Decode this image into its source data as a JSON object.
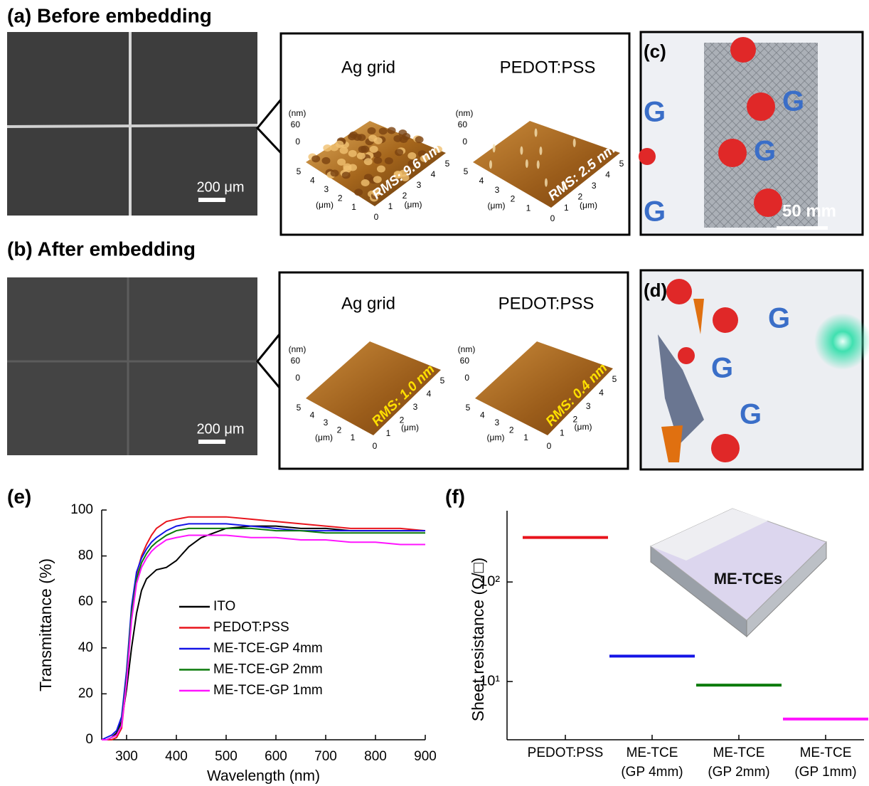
{
  "panels": {
    "a": {
      "label": "(a) Before embedding",
      "scale_bar": "200 μm",
      "afm": [
        {
          "title": "Ag grid",
          "rms": "RMS: 9.6 nm"
        },
        {
          "title": "PEDOT:PSS",
          "rms": "RMS: 2.5 nm"
        }
      ]
    },
    "b": {
      "label": "(b) After embedding",
      "scale_bar": "200 μm",
      "afm": [
        {
          "title": "Ag grid",
          "rms": "RMS: 1.0 nm"
        },
        {
          "title": "PEDOT:PSS",
          "rms": "RMS: 0.4 nm"
        }
      ]
    },
    "c": {
      "label": "(c)",
      "scale_bar": "50 mm"
    },
    "d": {
      "label": "(d)"
    },
    "afm_axes": {
      "z_unit": "(nm)",
      "z_ticks": [
        "60",
        "0"
      ],
      "xy_unit": "(μm)",
      "xy_ticks": [
        "0",
        "1",
        "2",
        "3",
        "4",
        "5"
      ]
    },
    "e": {
      "label": "(e)"
    },
    "f": {
      "label": "(f)",
      "inset": "ME-TCEs"
    }
  },
  "chart_data": [
    {
      "type": "line",
      "xlabel": "Wavelength (nm)",
      "ylabel": "Transmittance (%)",
      "x": [
        250,
        260,
        270,
        280,
        290,
        300,
        310,
        320,
        330,
        340,
        350,
        360,
        380,
        400,
        425,
        450,
        500,
        550,
        600,
        650,
        700,
        750,
        800,
        850,
        900
      ],
      "xlim": [
        250,
        900
      ],
      "xticks": [
        300,
        400,
        500,
        600,
        700,
        800,
        900
      ],
      "ylim": [
        0,
        100
      ],
      "yticks": [
        0,
        20,
        40,
        60,
        80,
        100
      ],
      "legend": "center",
      "series": [
        {
          "name": "ITO",
          "color": "#000000",
          "values": [
            0,
            0,
            1,
            3,
            8,
            22,
            40,
            55,
            65,
            70,
            72,
            74,
            75,
            78,
            84,
            88,
            92,
            93,
            93,
            92,
            92,
            91,
            91,
            91,
            91
          ]
        },
        {
          "name": "PEDOT:PSS",
          "color": "#e8141c",
          "values": [
            0,
            0,
            0,
            1,
            5,
            25,
            55,
            72,
            80,
            85,
            89,
            92,
            95,
            96,
            97,
            97,
            97,
            96,
            95,
            94,
            93,
            92,
            92,
            92,
            91
          ]
        },
        {
          "name": "ME-TCE-GP 4mm",
          "color": "#1414e6",
          "values": [
            0,
            1,
            2,
            4,
            10,
            30,
            58,
            73,
            79,
            83,
            86,
            88,
            91,
            93,
            94,
            94,
            94,
            93,
            92,
            91,
            91,
            91,
            91,
            91,
            91
          ]
        },
        {
          "name": "ME-TCE-GP 2mm",
          "color": "#0a7a0a",
          "values": [
            0,
            0,
            1,
            2,
            7,
            27,
            55,
            70,
            77,
            81,
            84,
            86,
            89,
            91,
            92,
            92,
            92,
            92,
            91,
            91,
            90,
            90,
            90,
            90,
            90
          ]
        },
        {
          "name": "ME-TCE-GP 1mm",
          "color": "#ff14ff",
          "values": [
            0,
            0,
            1,
            2,
            6,
            25,
            52,
            68,
            75,
            79,
            82,
            84,
            87,
            88,
            89,
            89,
            89,
            88,
            88,
            87,
            87,
            86,
            86,
            85,
            85
          ]
        }
      ]
    },
    {
      "type": "range",
      "ylabel": "Sheet resistance (Ω/□)",
      "log_scale": true,
      "categories": [
        "PEDOT:PSS",
        "ME-TCE\n(GP 4mm)",
        "ME-TCE\n(GP 2mm)",
        "ME-TCE\n(GP 1mm)"
      ],
      "values": [
        280,
        18,
        9.2,
        4.2
      ],
      "colors": [
        "#e8141c",
        "#1414e6",
        "#0a7a0a",
        "#ff14ff"
      ],
      "ylim": [
        2.6,
        520
      ],
      "yticks": [
        {
          "value": 10,
          "label": "10¹"
        },
        {
          "value": 100,
          "label": "10²"
        }
      ]
    }
  ]
}
